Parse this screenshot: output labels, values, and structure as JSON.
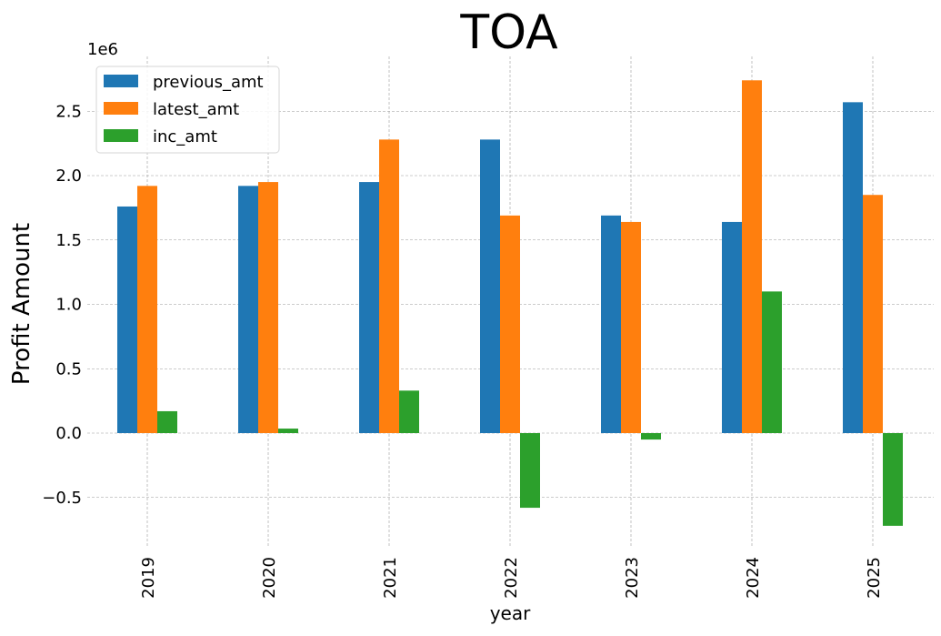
{
  "chart_data": {
    "type": "bar",
    "title": "TOA",
    "xlabel": "year",
    "ylabel": "Profit Amount",
    "y_offset_label": "1e6",
    "categories": [
      "2019",
      "2020",
      "2021",
      "2022",
      "2023",
      "2024",
      "2025"
    ],
    "series": [
      {
        "name": "previous_amt",
        "color": "#1f77b4",
        "values": [
          1.76,
          1.92,
          1.95,
          2.28,
          1.69,
          1.64,
          2.57
        ]
      },
      {
        "name": "latest_amt",
        "color": "#ff7f0e",
        "values": [
          1.92,
          1.95,
          2.28,
          1.69,
          1.64,
          2.74,
          1.85
        ]
      },
      {
        "name": "inc_amt",
        "color": "#2ca02c",
        "values": [
          0.17,
          0.035,
          0.33,
          -0.58,
          -0.05,
          1.1,
          -0.72
        ]
      }
    ],
    "ylim": [
      -0.9,
      2.92
    ],
    "yticks": [
      -0.5,
      0.0,
      0.5,
      1.0,
      1.5,
      2.0,
      2.5
    ],
    "ytick_labels": [
      "−0.5",
      "0.0",
      "0.5",
      "1.0",
      "1.5",
      "2.0",
      "2.5"
    ],
    "grid": true,
    "legend_position": "upper-left"
  }
}
